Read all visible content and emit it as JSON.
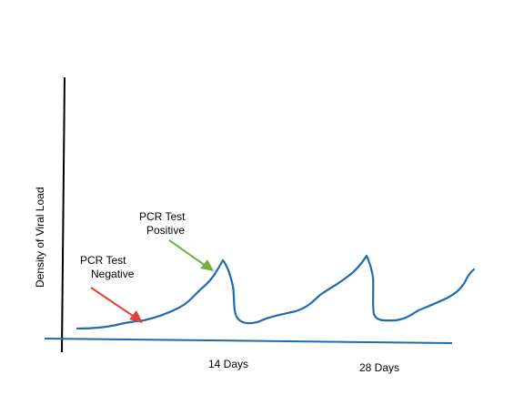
{
  "chart_data": {
    "type": "line",
    "title": "",
    "xlabel": "",
    "ylabel": "Density of Viral Load",
    "grid": false,
    "legend": "none",
    "x_tick_labels": [
      "14 Days",
      "28 Days"
    ],
    "annotations": [
      {
        "line1": "PCR Test",
        "line2": "Negative",
        "arrow_color": "#e0413b"
      },
      {
        "line1": "PCR Test",
        "line2": "Positive",
        "arrow_color": "#76b043"
      }
    ],
    "series": [
      {
        "line_color": "#1f6bb0"
      }
    ]
  },
  "colors": {
    "axis": "#000000",
    "baseline": "#1f6bb0",
    "curve": "#1f6bb0",
    "negative_arrow": "#e0413b",
    "positive_arrow": "#76b043"
  }
}
